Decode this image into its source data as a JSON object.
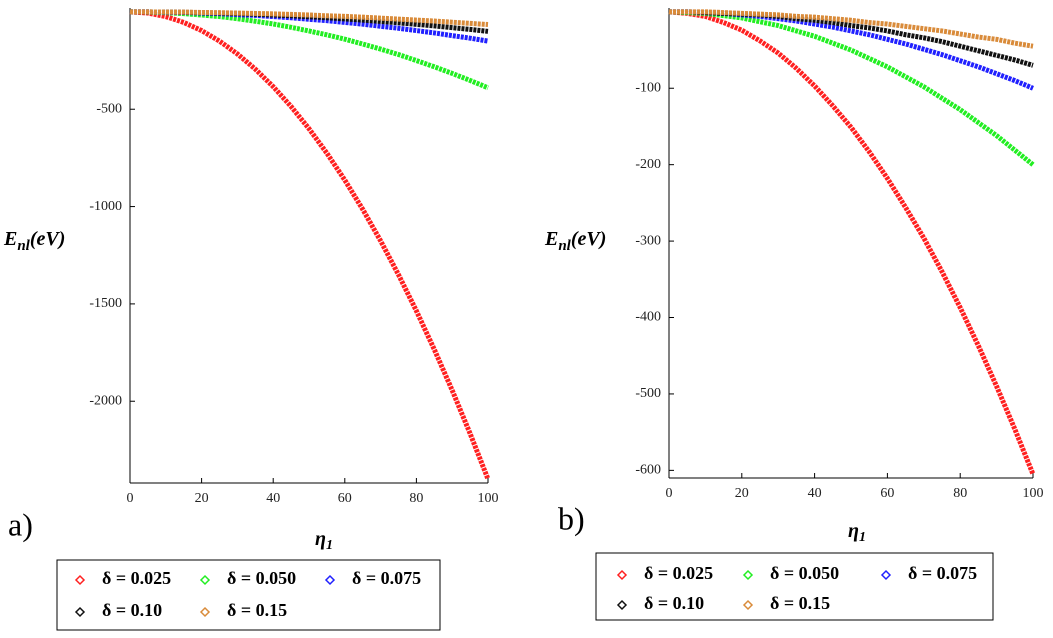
{
  "chart_data": [
    {
      "type": "line",
      "panel_label": "a)",
      "x_label": [
        "η",
        "1"
      ],
      "y_label": [
        "E",
        "nl",
        "(eV)"
      ],
      "x": [
        0,
        5,
        10,
        15,
        20,
        25,
        30,
        35,
        40,
        45,
        50,
        55,
        60,
        65,
        70,
        75,
        80,
        85,
        90,
        95,
        100
      ],
      "xlim": [
        0,
        100
      ],
      "xticks": [
        0,
        20,
        40,
        60,
        80,
        100
      ],
      "ylim": [
        -2420,
        20
      ],
      "yticks": [
        -2000,
        -1500,
        -1000,
        -500
      ],
      "series": [
        {
          "name": "δ = 0.025",
          "color": "#ff2020",
          "values": [
            0,
            -6,
            -24,
            -54,
            -96,
            -150,
            -216,
            -294,
            -384,
            -486,
            -600,
            -726,
            -864,
            -1014,
            -1176,
            -1350,
            -1536,
            -1734,
            -1944,
            -2166,
            -2400
          ]
        },
        {
          "name": "δ = 0.050",
          "color": "#22ee22",
          "values": [
            0,
            -1,
            -4,
            -9,
            -16,
            -24,
            -35,
            -48,
            -62,
            -79,
            -98,
            -118,
            -140,
            -165,
            -191,
            -219,
            -250,
            -282,
            -316,
            -352,
            -390
          ]
        },
        {
          "name": "δ = 0.075",
          "color": "#2020ff",
          "values": [
            0,
            0,
            -2,
            -3,
            -6,
            -9,
            -14,
            -18,
            -24,
            -30,
            -38,
            -45,
            -54,
            -63,
            -74,
            -84,
            -96,
            -108,
            -122,
            -135,
            -150
          ]
        },
        {
          "name": "δ = 0.10",
          "color": "#111111",
          "values": [
            0,
            0,
            -1,
            -2,
            -4,
            -6,
            -9,
            -12,
            -16,
            -20,
            -25,
            -30,
            -36,
            -42,
            -49,
            -56,
            -64,
            -72,
            -81,
            -90,
            -100
          ]
        },
        {
          "name": "δ = 0.15",
          "color": "#d98b3a",
          "values": [
            0,
            0,
            -1,
            -1,
            -3,
            -4,
            -6,
            -8,
            -10,
            -13,
            -16,
            -20,
            -23,
            -27,
            -32,
            -37,
            -42,
            -47,
            -53,
            -59,
            -65
          ]
        }
      ]
    },
    {
      "type": "line",
      "panel_label": "b)",
      "x_label": [
        "η",
        "1"
      ],
      "y_label": [
        "E",
        "nl",
        "(eV)"
      ],
      "x": [
        0,
        5,
        10,
        15,
        20,
        25,
        30,
        35,
        40,
        45,
        50,
        55,
        60,
        65,
        70,
        75,
        80,
        85,
        90,
        95,
        100
      ],
      "xlim": [
        0,
        100
      ],
      "xticks": [
        0,
        20,
        40,
        60,
        80,
        100
      ],
      "ylim": [
        -610,
        5
      ],
      "yticks": [
        -600,
        -500,
        -400,
        -300,
        -200,
        -100
      ],
      "series": [
        {
          "name": "δ = 0.025",
          "color": "#ff2020",
          "values": [
            0,
            -2,
            -6,
            -14,
            -24,
            -38,
            -54,
            -74,
            -97,
            -123,
            -151,
            -183,
            -218,
            -256,
            -296,
            -340,
            -387,
            -437,
            -490,
            -546,
            -605
          ]
        },
        {
          "name": "δ = 0.050",
          "color": "#22ee22",
          "values": [
            0,
            -1,
            -2,
            -5,
            -8,
            -13,
            -18,
            -25,
            -32,
            -41,
            -50,
            -61,
            -72,
            -85,
            -98,
            -113,
            -128,
            -145,
            -162,
            -181,
            -200
          ]
        },
        {
          "name": "δ = 0.075",
          "color": "#2020ff",
          "values": [
            0,
            0,
            -1,
            -2,
            -4,
            -6,
            -9,
            -12,
            -16,
            -20,
            -25,
            -30,
            -36,
            -42,
            -49,
            -56,
            -64,
            -72,
            -81,
            -90,
            -100
          ]
        },
        {
          "name": "δ = 0.10",
          "color": "#111111",
          "values": [
            0,
            0,
            -1,
            -2,
            -3,
            -4,
            -6,
            -9,
            -11,
            -14,
            -18,
            -21,
            -25,
            -30,
            -34,
            -39,
            -45,
            -51,
            -57,
            -63,
            -70
          ]
        },
        {
          "name": "δ = 0.15",
          "color": "#d98b3a",
          "values": [
            0,
            0,
            0,
            -1,
            -2,
            -3,
            -4,
            -6,
            -7,
            -9,
            -11,
            -14,
            -16,
            -19,
            -22,
            -25,
            -29,
            -33,
            -36,
            -41,
            -45
          ]
        }
      ]
    }
  ]
}
